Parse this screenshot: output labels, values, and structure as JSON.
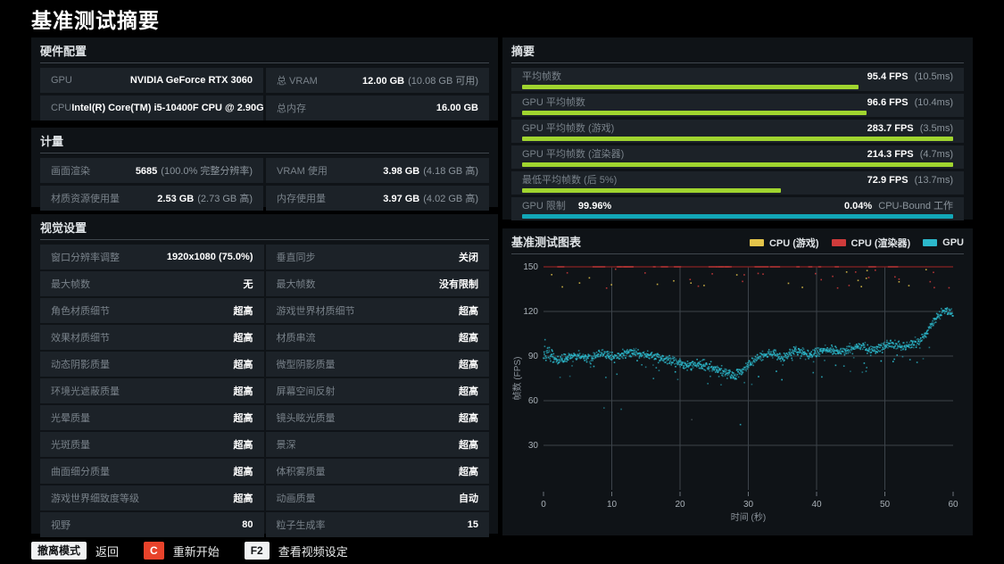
{
  "page": {
    "title": "基准测试摘要"
  },
  "colors": {
    "green_bar": "#a0d52f",
    "cyan_bar": "#12a7b8",
    "row_bg": "#1c2228",
    "panel_bg": "#0f1317",
    "grid": "#3c434a",
    "scatter_gpu": "#2cb8cb",
    "clip_red": "#7c2022",
    "legend_yellow": "#e3c44a",
    "legend_red": "#cf3b3b",
    "legend_teal": "#27a9ba",
    "key_red": "#e8432b"
  },
  "hardware": {
    "title": "硬件配置",
    "rows": [
      [
        {
          "label": "GPU",
          "value": "NVIDIA GeForce RTX 3060",
          "note": ""
        },
        {
          "label": "总 VRAM",
          "value": "12.00 GB",
          "note": "(10.08 GB 可用)"
        }
      ],
      [
        {
          "label": "CPU",
          "value": "Intel(R) Core(TM) i5-10400F CPU @ 2.90GHz",
          "note": ""
        },
        {
          "label": "总内存",
          "value": "16.00 GB",
          "note": ""
        }
      ]
    ]
  },
  "metrics": {
    "title": "计量",
    "rows": [
      [
        {
          "label": "画面渲染",
          "value": "5685",
          "note": "(100.0% 完整分辨率)"
        },
        {
          "label": "VRAM 使用",
          "value": "3.98 GB",
          "note": "(4.18 GB 高)"
        }
      ],
      [
        {
          "label": "材质资源使用量",
          "value": "2.53 GB",
          "note": "(2.73 GB 高)"
        },
        {
          "label": "内存使用量",
          "value": "3.97 GB",
          "note": "(4.02 GB 高)"
        }
      ]
    ]
  },
  "visual": {
    "title": "视觉设置",
    "rows": [
      [
        {
          "label": "窗口分辨率调整",
          "value": "1920x1080 (75.0%)",
          "note": ""
        },
        {
          "label": "垂直同步",
          "value": "关闭",
          "note": ""
        }
      ],
      [
        {
          "label": "最大帧数",
          "value": "无",
          "note": ""
        },
        {
          "label": "最大帧数",
          "value": "没有限制",
          "note": ""
        }
      ],
      [
        {
          "label": "角色材质细节",
          "value": "超高",
          "note": ""
        },
        {
          "label": "游戏世界材质细节",
          "value": "超高",
          "note": ""
        }
      ],
      [
        {
          "label": "效果材质细节",
          "value": "超高",
          "note": ""
        },
        {
          "label": "材质串流",
          "value": "超高",
          "note": ""
        }
      ],
      [
        {
          "label": "动态阴影质量",
          "value": "超高",
          "note": ""
        },
        {
          "label": "微型阴影质量",
          "value": "超高",
          "note": ""
        }
      ],
      [
        {
          "label": "环境光遮蔽质量",
          "value": "超高",
          "note": ""
        },
        {
          "label": "屏幕空间反射",
          "value": "超高",
          "note": ""
        }
      ],
      [
        {
          "label": "光晕质量",
          "value": "超高",
          "note": ""
        },
        {
          "label": "镜头眩光质量",
          "value": "超高",
          "note": ""
        }
      ],
      [
        {
          "label": "光斑质量",
          "value": "超高",
          "note": ""
        },
        {
          "label": "景深",
          "value": "超高",
          "note": ""
        }
      ],
      [
        {
          "label": "曲面细分质量",
          "value": "超高",
          "note": ""
        },
        {
          "label": "体积雾质量",
          "value": "超高",
          "note": ""
        }
      ],
      [
        {
          "label": "游戏世界细致度等级",
          "value": "超高",
          "note": ""
        },
        {
          "label": "动画质量",
          "value": "自动",
          "note": ""
        }
      ],
      [
        {
          "label": "视野",
          "value": "80",
          "note": ""
        },
        {
          "label": "粒子生成率",
          "value": "15",
          "note": ""
        }
      ]
    ]
  },
  "summary": {
    "title": "摘要",
    "rows": [
      {
        "label": "平均帧数",
        "value": "95.4 FPS",
        "note": "(10.5ms)",
        "bar_pct": 78,
        "bar": "green"
      },
      {
        "label": "GPU 平均帧数",
        "value": "96.6 FPS",
        "note": "(10.4ms)",
        "bar_pct": 80,
        "bar": "green"
      },
      {
        "label": "GPU 平均帧数 (游戏)",
        "value": "283.7 FPS",
        "note": "(3.5ms)",
        "bar_pct": 100,
        "bar": "green"
      },
      {
        "label": "GPU 平均帧数 (渲染器)",
        "value": "214.3 FPS",
        "note": "(4.7ms)",
        "bar_pct": 100,
        "bar": "green"
      },
      {
        "label": "最低平均帧数 (后 5%)",
        "value": "72.9 FPS",
        "note": "(13.7ms)",
        "bar_pct": 60,
        "bar": "green"
      },
      {
        "label": "GPU 限制",
        "label_value": "99.96%",
        "value": "0.04%",
        "note": "CPU-Bound 工作",
        "bar_pct": 100,
        "bar": "cyan"
      }
    ]
  },
  "chart": {
    "title": "基准测试图表"
  },
  "chart_data": {
    "type": "scatter",
    "title": "基准测试图表",
    "xlabel": "时间 (秒)",
    "ylabel": "帧数 (FPS)",
    "xlim": [
      0,
      60
    ],
    "ylim": [
      0,
      150
    ],
    "xticks": [
      0,
      10,
      20,
      30,
      40,
      50,
      60
    ],
    "yticks": [
      30,
      60,
      90,
      120,
      150
    ],
    "grid": true,
    "legend_position": "top-right",
    "series": [
      {
        "name": "CPU (游戏)",
        "color": "#e3c44a",
        "avg_fps": 283.7,
        "note": "mostly above axis max, clipped at 150; sparse visible dots 136-150"
      },
      {
        "name": "CPU (渲染器)",
        "color": "#cf3b3b",
        "avg_fps": 214.3,
        "note": "mostly above axis max, renders as dark-red clip line at 150; sparse visible dots 134-150"
      },
      {
        "name": "GPU",
        "color": "#2cb8cb",
        "avg_fps": 96.6,
        "x_seconds": [
          0,
          1,
          2,
          3,
          4,
          5,
          6,
          7,
          8,
          9,
          10,
          11,
          12,
          13,
          14,
          15,
          16,
          17,
          18,
          19,
          20,
          21,
          22,
          23,
          24,
          25,
          26,
          27,
          28,
          29,
          30,
          31,
          32,
          33,
          34,
          35,
          36,
          37,
          38,
          39,
          40,
          41,
          42,
          43,
          44,
          45,
          46,
          47,
          48,
          49,
          50,
          51,
          52,
          53,
          54,
          55,
          56,
          57,
          58,
          59,
          60
        ],
        "mean_fps": [
          95,
          90,
          87,
          88,
          90,
          90,
          89,
          89,
          91,
          92,
          90,
          91,
          92,
          93,
          92,
          91,
          90,
          89,
          88,
          87,
          85,
          84,
          84,
          85,
          83,
          82,
          80,
          78,
          77,
          80,
          84,
          88,
          90,
          92,
          91,
          89,
          91,
          94,
          93,
          91,
          92,
          94,
          95,
          94,
          93,
          95,
          97,
          96,
          94,
          95,
          97,
          98,
          97,
          96,
          98,
          100,
          105,
          112,
          118,
          121,
          118
        ],
        "spread_fps": 4.5
      }
    ]
  },
  "footer": {
    "items": [
      {
        "key": "撤离模式",
        "key_style": "white",
        "label": "返回"
      },
      {
        "key": "C",
        "key_style": "red",
        "label": "重新开始"
      },
      {
        "key": "F2",
        "key_style": "white",
        "label": "查看视频设定"
      }
    ]
  }
}
